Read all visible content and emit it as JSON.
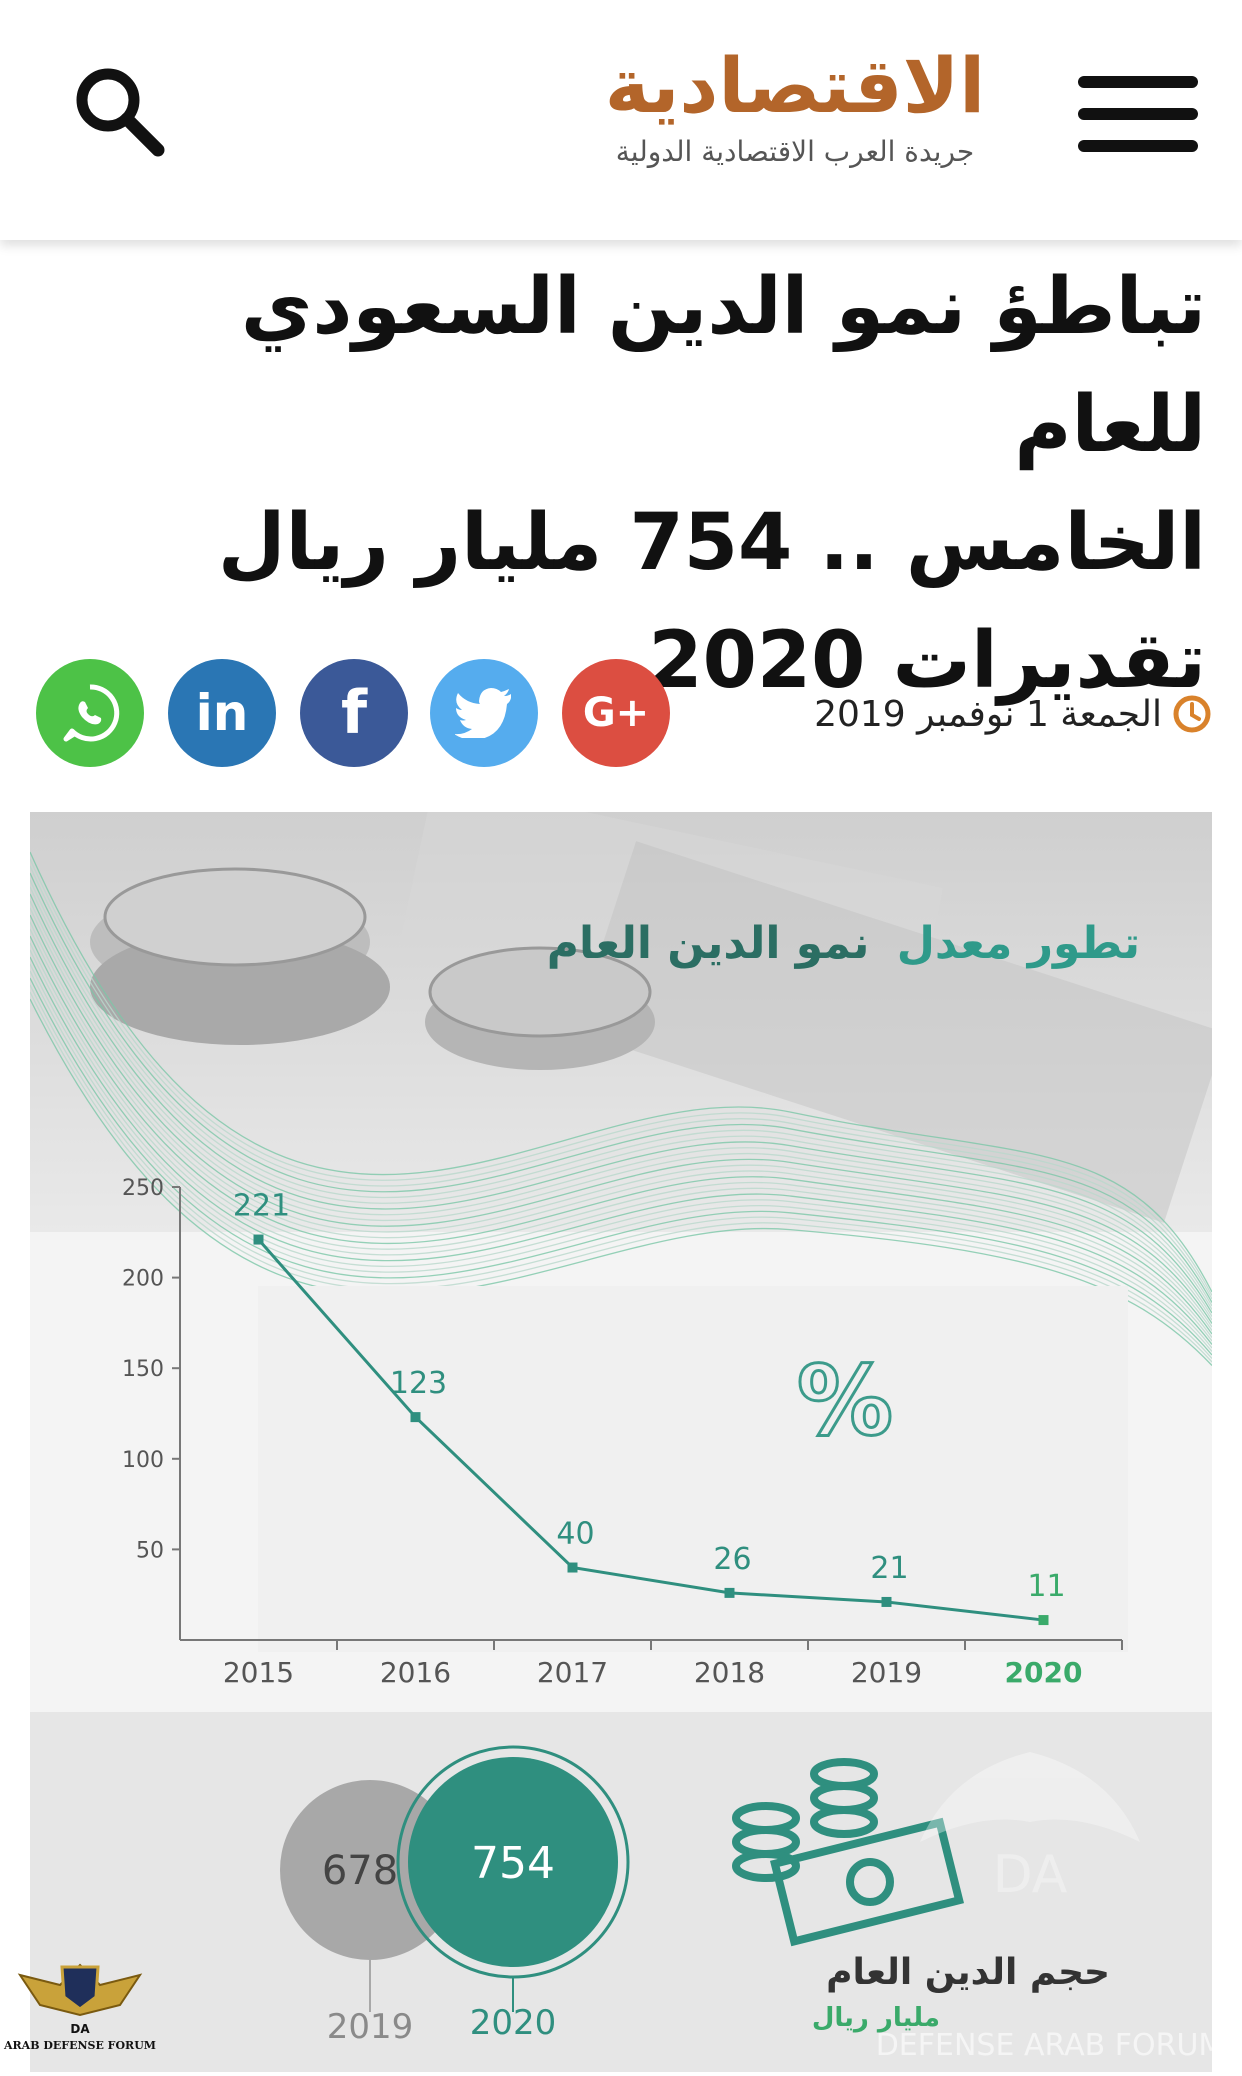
{
  "header": {
    "logo_main": "الاقتصادية",
    "logo_sub": "جريدة العرب الاقتصادية الدولية"
  },
  "article": {
    "headline_lines": [
      "تباطؤ نمو الدين السعودي للعام",
      "الخامس .. 754 مليار ريال",
      "تقديرات 2020"
    ],
    "date": "الجمعة 1 نوفمبر 2019"
  },
  "share_buttons": [
    {
      "name": "google-plus",
      "label": "G+",
      "color": "#dc4e41"
    },
    {
      "name": "twitter",
      "label": "",
      "color": "#55acee"
    },
    {
      "name": "facebook",
      "label": "f",
      "color": "#3b5998"
    },
    {
      "name": "linkedin",
      "label": "in",
      "color": "#2a76b4"
    },
    {
      "name": "whatsapp",
      "label": "",
      "color": "#4dc247"
    }
  ],
  "infographic": {
    "title_part1": "تطور معدل",
    "title_part2": "نمو الدين العام",
    "percent_symbol": "%",
    "debt_label": "حجم الدين العام",
    "debt_unit": "مليار ريال",
    "bubble_2019_value": "678",
    "bubble_2020_value": "754",
    "bubble_2019_year": "2019",
    "bubble_2020_year": "2020",
    "watermark_text": "DEFENSE ARAB FORUM",
    "badge_text": "ARAB DEFENSE FORUM"
  },
  "chart_data": {
    "type": "line",
    "title": "تطور معدل نمو الدين العام",
    "x": [
      "2015",
      "2016",
      "2017",
      "2018",
      "2019",
      "2020"
    ],
    "values": [
      221,
      123,
      40,
      26,
      21,
      11
    ],
    "data_labels": [
      "221",
      "123",
      "40",
      "26",
      "21",
      "11"
    ],
    "yticks": [
      "50",
      "100",
      "150",
      "200",
      "250"
    ],
    "ylim": [
      0,
      250
    ],
    "line_color": "#2f8f7f",
    "highlight_color": "#3aaa6a"
  },
  "colors": {
    "accent_green": "#2f8f7f",
    "logo_orange": "#b3652a",
    "clock_orange": "#d9822b"
  }
}
